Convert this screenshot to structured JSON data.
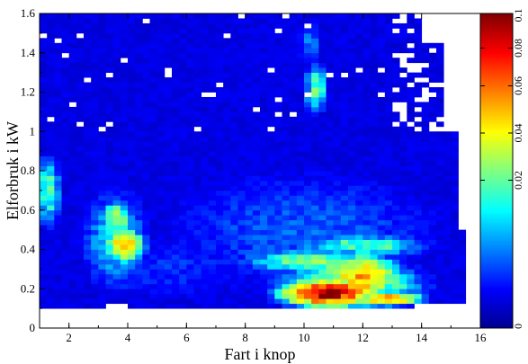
{
  "chart_data": {
    "type": "heatmap",
    "title": "",
    "xlabel": "Fart i knop",
    "ylabel": "Elforbruk i kW",
    "xlim": [
      1,
      16
    ],
    "ylim": [
      0,
      1.6
    ],
    "xticks": [
      "2",
      "4",
      "6",
      "8",
      "10",
      "12",
      "14",
      "16"
    ],
    "yticks": [
      "0",
      "0.2",
      "0.4",
      "0.6",
      "0.8",
      "1",
      "1.2",
      "1.4",
      "1.6"
    ],
    "colorbar": {
      "range": [
        0,
        0.1
      ],
      "scale": "nonlinear",
      "ticks": [
        "0",
        "0.02",
        "0.04",
        "0.06",
        "0.08",
        "0.1"
      ],
      "tick_values": [
        0,
        0.02,
        0.04,
        0.06,
        0.08,
        0.1
      ],
      "colormap": "jet",
      "colors": [
        "#00008f",
        "#0000ff",
        "#0080ff",
        "#00ffff",
        "#80ff80",
        "#ffff00",
        "#ff8000",
        "#ff0000",
        "#800000"
      ]
    },
    "background_value": 0.004,
    "empty_color": "#ffffff",
    "grid_step": [
      0.25,
      0.025
    ],
    "hotspots": [
      {
        "x": 10.8,
        "y": 0.18,
        "sx": 0.9,
        "sy": 0.04,
        "value": 0.095
      },
      {
        "x": 12.0,
        "y": 0.26,
        "sx": 0.7,
        "sy": 0.07,
        "value": 0.055
      },
      {
        "x": 11.5,
        "y": 0.22,
        "sx": 1.6,
        "sy": 0.08,
        "value": 0.03
      },
      {
        "x": 12.8,
        "y": 0.15,
        "sx": 0.7,
        "sy": 0.02,
        "value": 0.06
      },
      {
        "x": 10.5,
        "y": 0.34,
        "sx": 1.7,
        "sy": 0.04,
        "value": 0.025
      },
      {
        "x": 12.0,
        "y": 0.42,
        "sx": 1.6,
        "sy": 0.04,
        "value": 0.02
      },
      {
        "x": 3.9,
        "y": 0.42,
        "sx": 0.4,
        "sy": 0.05,
        "value": 0.05
      },
      {
        "x": 3.6,
        "y": 0.56,
        "sx": 0.35,
        "sy": 0.05,
        "value": 0.03
      },
      {
        "x": 3.6,
        "y": 0.45,
        "sx": 0.8,
        "sy": 0.18,
        "value": 0.015
      },
      {
        "x": 1.3,
        "y": 0.7,
        "sx": 0.3,
        "sy": 0.12,
        "value": 0.02
      },
      {
        "x": 10.4,
        "y": 1.22,
        "sx": 0.25,
        "sy": 0.08,
        "value": 0.022
      },
      {
        "x": 10.2,
        "y": 1.45,
        "sx": 0.3,
        "sy": 0.1,
        "value": 0.01
      },
      {
        "x": 10.0,
        "y": 0.5,
        "sx": 4.0,
        "sy": 0.25,
        "value": 0.009
      },
      {
        "x": 5.5,
        "y": 0.3,
        "sx": 3.0,
        "sy": 0.15,
        "value": 0.007
      },
      {
        "x": 8.5,
        "y": 0.75,
        "sx": 5.0,
        "sy": 0.3,
        "value": 0.004
      }
    ],
    "empty_regions": [
      {
        "x": [
          1,
          16
        ],
        "y": [
          0,
          0.1
        ]
      },
      {
        "x": [
          3.25,
          3.9
        ],
        "y": [
          0,
          0.13
        ]
      },
      {
        "x": [
          14.1,
          16
        ],
        "y": [
          1.45,
          1.6
        ]
      },
      {
        "x": [
          14.8,
          16
        ],
        "y": [
          1.0,
          1.6
        ]
      },
      {
        "x": [
          15.2,
          16
        ],
        "y": [
          0.5,
          1.0
        ]
      },
      {
        "x": [
          15.6,
          16
        ],
        "y": [
          0.12,
          0.5
        ]
      },
      {
        "x": [
          13.7,
          16
        ],
        "y": [
          0.1,
          0.12
        ]
      }
    ]
  }
}
